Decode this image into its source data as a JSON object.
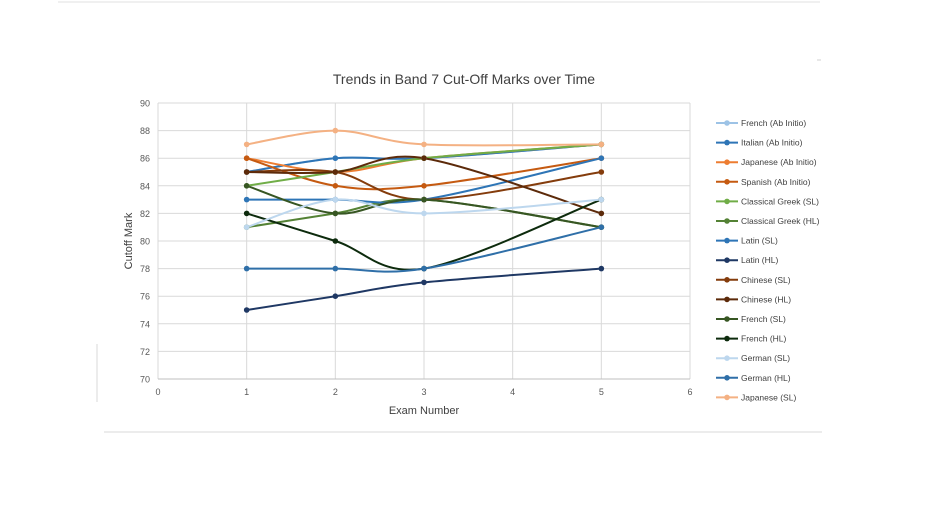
{
  "chart_data": {
    "type": "scatter",
    "title": "Trends in Band 7 Cut-Off Marks over Time",
    "xlabel": "Exam Number",
    "ylabel": "Cutoff Mark",
    "xlim": [
      0,
      6
    ],
    "ylim": [
      70,
      90
    ],
    "x_ticks": [
      0,
      1,
      2,
      3,
      4,
      5,
      6
    ],
    "y_ticks": [
      70,
      72,
      74,
      76,
      78,
      80,
      82,
      84,
      86,
      88,
      90
    ],
    "grid": true,
    "smooth_lines": true,
    "legend_position": "right",
    "x": [
      1,
      2,
      3,
      5
    ],
    "series": [
      {
        "name": "French (Ab Initio)",
        "color": "#9dc3e6",
        "values": [
          85,
          86,
          86,
          87
        ]
      },
      {
        "name": "Italian (Ab Initio)",
        "color": "#2e75b6",
        "values": [
          85,
          86,
          86,
          87
        ]
      },
      {
        "name": "Japanese (Ab Initio)",
        "color": "#ed7d31",
        "values": [
          86,
          85,
          86,
          87
        ]
      },
      {
        "name": "Spanish (Ab Initio)",
        "color": "#c55a11",
        "values": [
          86,
          84,
          84,
          86
        ]
      },
      {
        "name": "Classical Greek (SL)",
        "color": "#70ad47",
        "values": [
          84,
          85,
          86,
          87
        ]
      },
      {
        "name": "Classical Greek (HL)",
        "color": "#548235",
        "values": [
          81,
          82,
          83,
          81
        ]
      },
      {
        "name": "Latin (SL)",
        "color": "#2e75b6",
        "values": [
          83,
          83,
          83,
          86
        ]
      },
      {
        "name": "Latin (HL)",
        "color": "#1f3864",
        "values": [
          75,
          76,
          77,
          78
        ]
      },
      {
        "name": "Chinese (SL)",
        "color": "#843c0c",
        "values": [
          85,
          85,
          83,
          85
        ]
      },
      {
        "name": "Chinese (HL)",
        "color": "#5c2a0a",
        "values": [
          85,
          85,
          86,
          82
        ]
      },
      {
        "name": "French (SL)",
        "color": "#375623",
        "values": [
          84,
          82,
          83,
          81
        ]
      },
      {
        "name": "French (HL)",
        "color": "#0d2b0d",
        "values": [
          82,
          80,
          78,
          83
        ]
      },
      {
        "name": "German (SL)",
        "color": "#bdd7ee",
        "values": [
          81,
          83,
          82,
          83
        ]
      },
      {
        "name": "German (HL)",
        "color": "#2f6fa8",
        "values": [
          78,
          78,
          78,
          81
        ]
      },
      {
        "name": "Japanese (SL)",
        "color": "#f4b183",
        "values": [
          87,
          88,
          87,
          87
        ]
      }
    ]
  }
}
